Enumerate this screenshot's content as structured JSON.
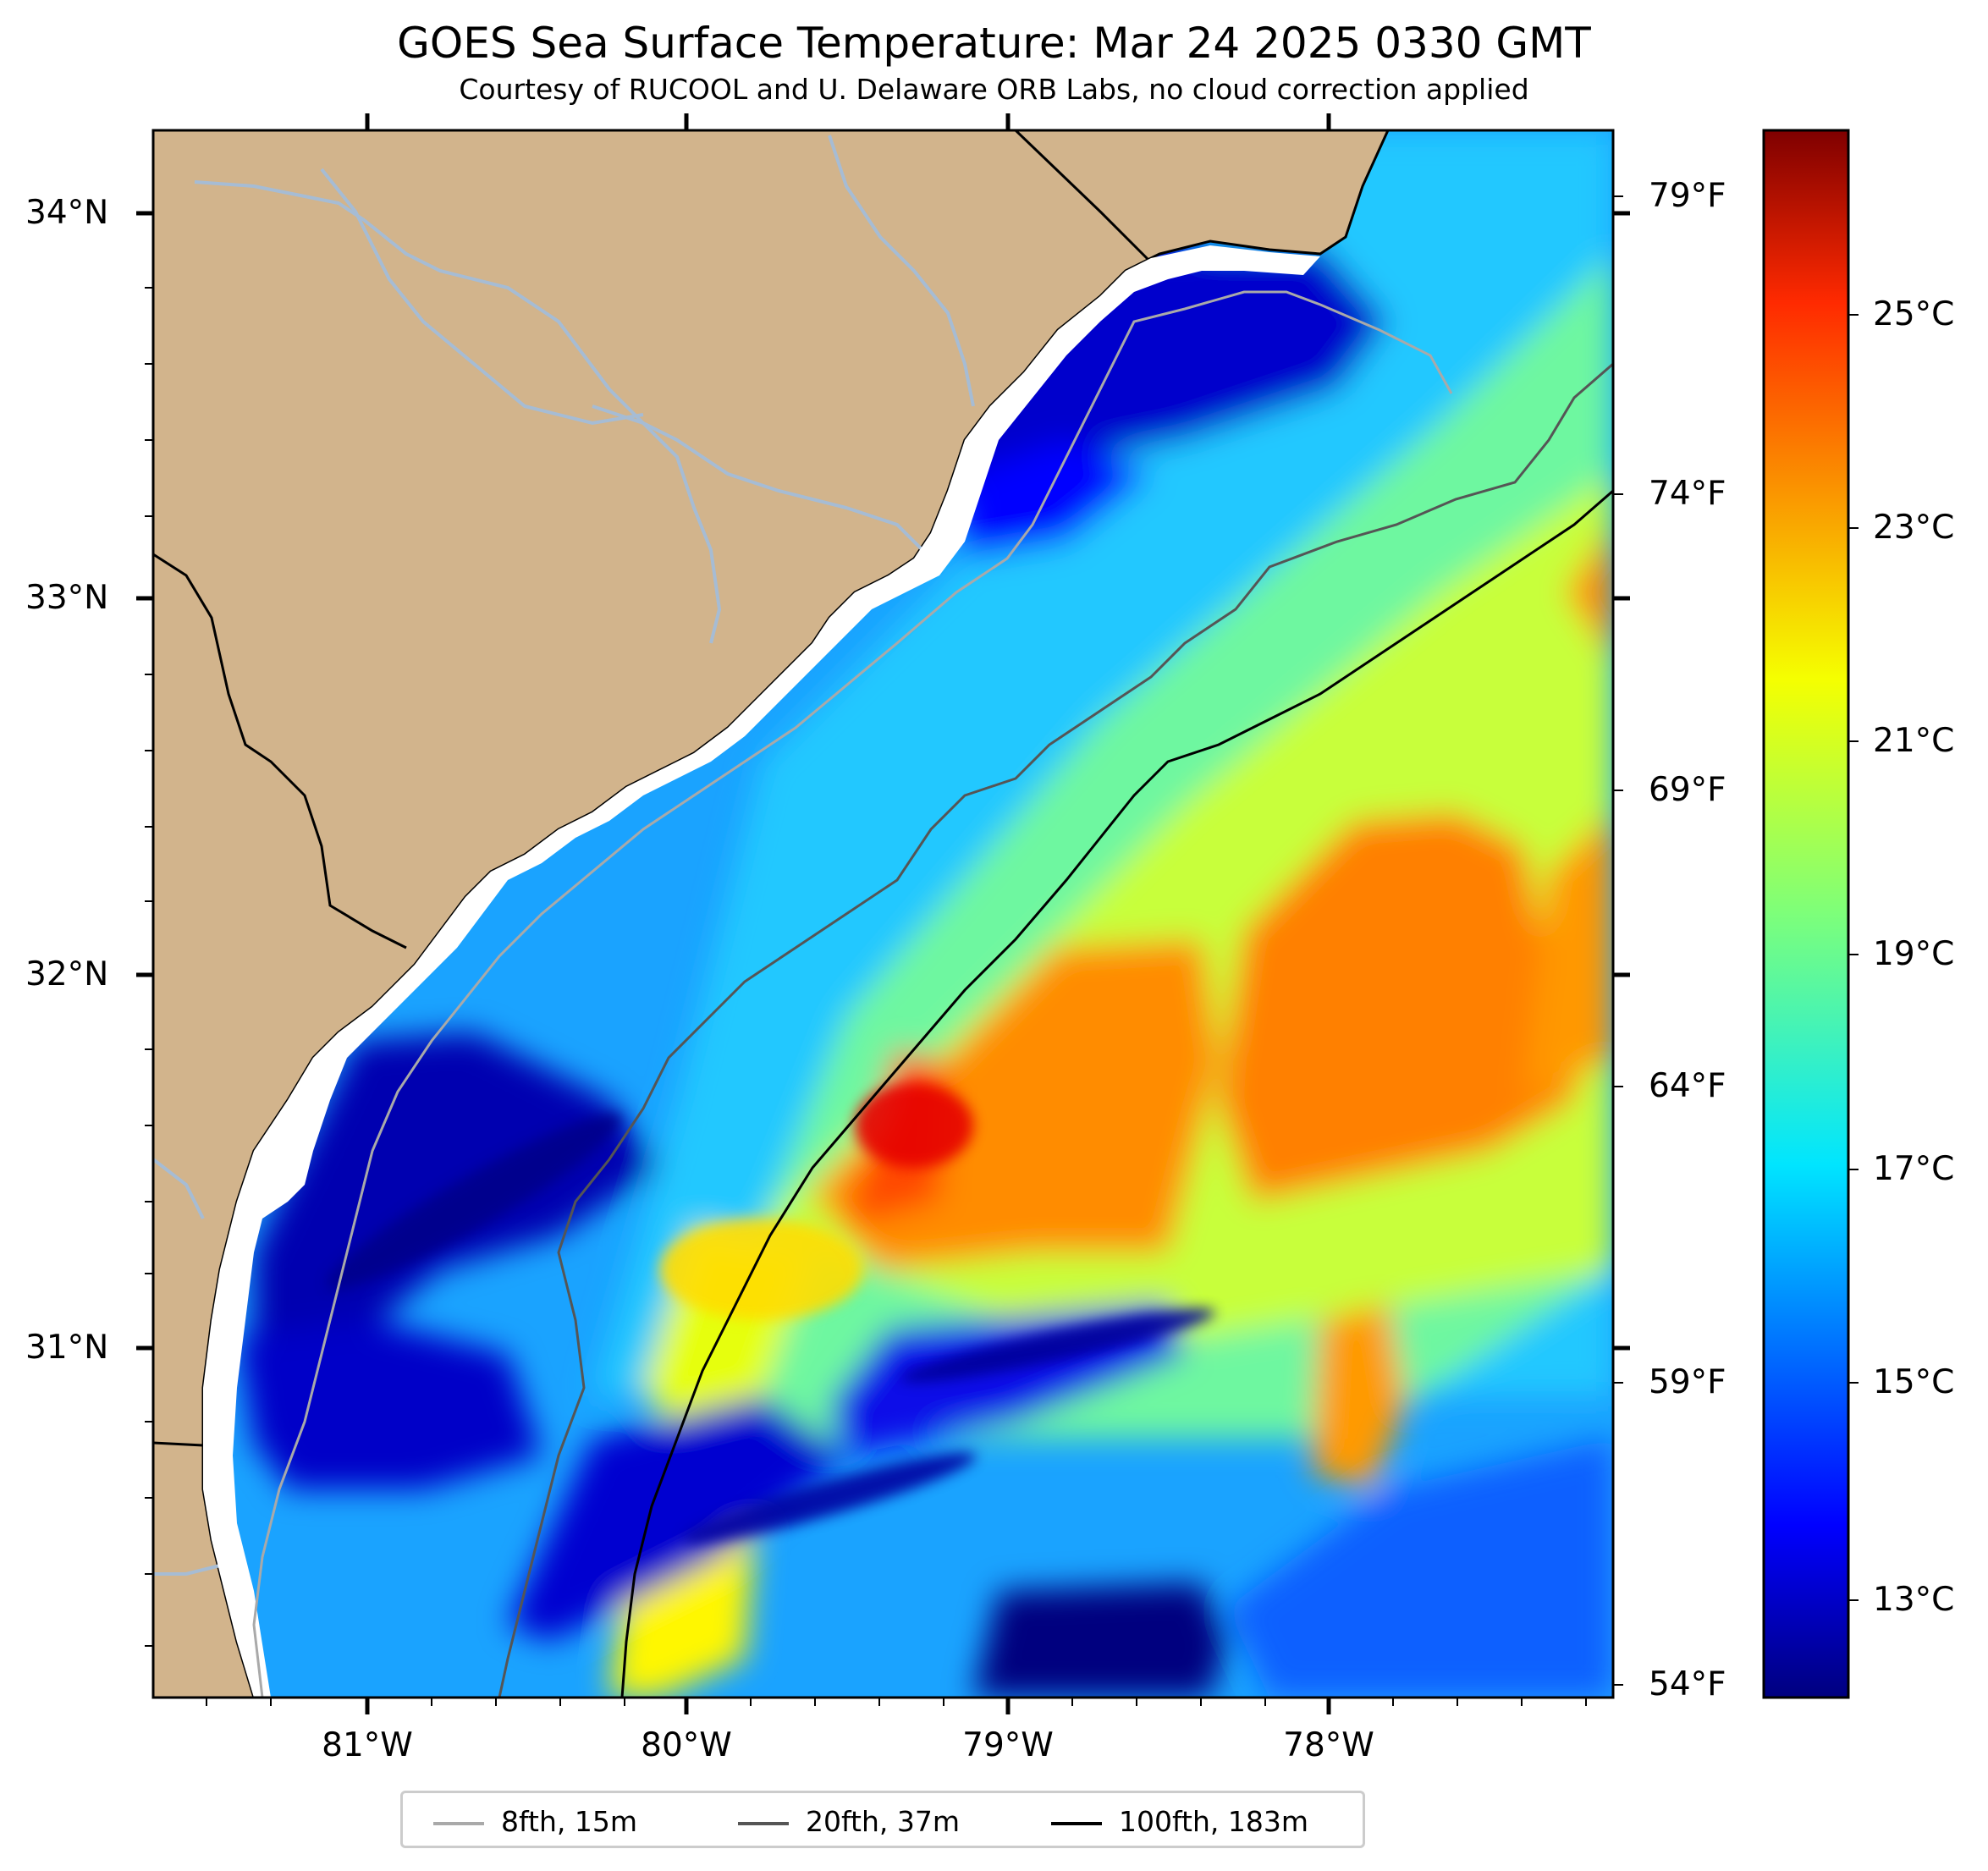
{
  "title": "GOES Sea Surface Temperature: Mar 24 2025 0330 GMT",
  "subtitle": "Courtesy of RUCOOL and U. Delaware ORB Labs, no cloud correction applied",
  "colors": {
    "land": "#d2b48c",
    "river": "#a6bcd4",
    "coast": "#000000",
    "iso_8fth": "#a9a9a9",
    "iso_20fth": "#555555",
    "iso_100fth": "#000000"
  },
  "axes": {
    "lat_labels": [
      "34°N",
      "33°N",
      "32°N",
      "31°N"
    ],
    "lon_labels": [
      "81°W",
      "80°W",
      "79°W",
      "78°W"
    ],
    "fahrenheit_labels": [
      "79°F",
      "74°F",
      "69°F",
      "64°F",
      "59°F",
      "54°F"
    ]
  },
  "colorbar": {
    "colormap": "jet",
    "labels": [
      "25°C",
      "23°C",
      "21°C",
      "19°C",
      "17°C",
      "15°C",
      "13°C"
    ]
  },
  "legend": {
    "items": [
      {
        "label": "8fth, 15m",
        "color": "#a9a9a9"
      },
      {
        "label": "20fth, 37m",
        "color": "#555555"
      },
      {
        "label": "100fth, 183m",
        "color": "#000000"
      }
    ]
  }
}
